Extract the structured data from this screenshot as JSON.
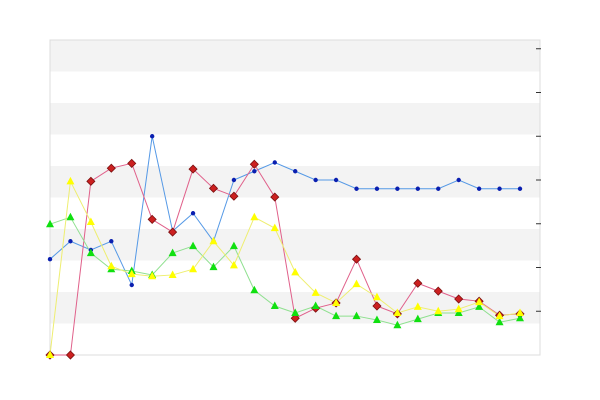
{
  "chart_data": {
    "type": "line",
    "categories": [
      null,
      null,
      null,
      null,
      null,
      null,
      null,
      null,
      null,
      null,
      null,
      null,
      null,
      null,
      null,
      null,
      null,
      null,
      null,
      null,
      null,
      null,
      null,
      null
    ],
    "ylim": [
      0,
      7.2
    ],
    "yticks": [
      1,
      2,
      3,
      4,
      5,
      6,
      7
    ],
    "tick_side": "right",
    "banded_background": true,
    "series": [
      {
        "color": "#5599e6",
        "marker_color": "#0a1fb0",
        "marker": "circle",
        "values": [
          2.19,
          2.6,
          2.4,
          2.6,
          1.6,
          5.0,
          2.83,
          3.24,
          2.6,
          4.0,
          4.2,
          4.4,
          4.2,
          4.0,
          4.0,
          3.8,
          3.8,
          3.8,
          3.8,
          3.8,
          4.0,
          3.8,
          3.8,
          3.8
        ]
      },
      {
        "color": "#e0608a",
        "marker_color": "#cc2020",
        "marker": "diamond",
        "values": [
          0,
          0,
          3.97,
          4.27,
          4.38,
          3.1,
          2.81,
          4.25,
          3.81,
          3.63,
          4.36,
          3.61,
          0.84,
          1.07,
          1.19,
          2.19,
          1.12,
          0.94,
          1.64,
          1.46,
          1.28,
          1.23,
          0.91,
          0.94
        ]
      },
      {
        "color": "#8fe08f",
        "marker_color": "#10e010",
        "marker": "triangle",
        "values": [
          2.99,
          3.15,
          2.33,
          1.96,
          1.92,
          1.83,
          2.33,
          2.49,
          2.01,
          2.49,
          1.48,
          1.12,
          0.96,
          1.12,
          0.89,
          0.89,
          0.8,
          0.68,
          0.82,
          0.96,
          0.96,
          1.1,
          0.75,
          0.84
        ]
      },
      {
        "color": "#eeee70",
        "marker_color": "#ffff00",
        "marker": "triangle",
        "values": [
          0,
          3.97,
          3.04,
          2.03,
          1.85,
          1.8,
          1.83,
          1.96,
          2.6,
          2.05,
          3.15,
          2.9,
          1.89,
          1.42,
          1.19,
          1.62,
          1.32,
          0.96,
          1.1,
          1.0,
          1.05,
          1.21,
          0.89,
          0.96
        ]
      }
    ]
  }
}
